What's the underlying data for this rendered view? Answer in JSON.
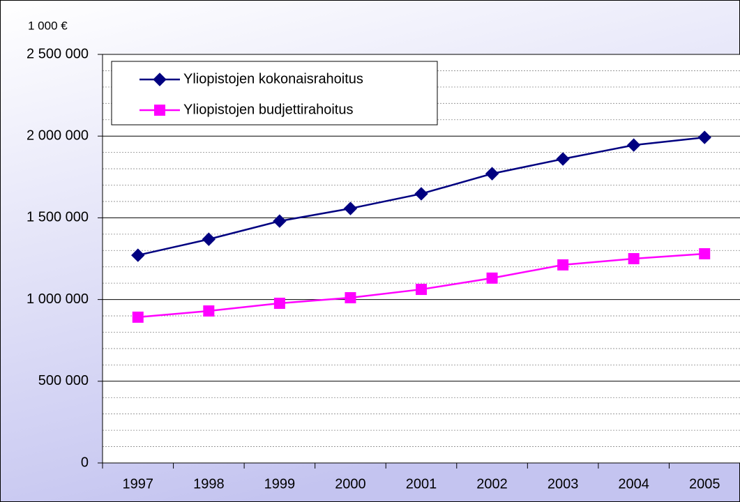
{
  "chart_data": {
    "type": "line",
    "unit_label": "1 000 €",
    "categories": [
      "1997",
      "1998",
      "1999",
      "2000",
      "2001",
      "2002",
      "2003",
      "2004",
      "2005"
    ],
    "series": [
      {
        "name": "Yliopistojen kokonaisrahoitus",
        "color": "#000080",
        "marker": "diamond",
        "values": [
          1271000,
          1369000,
          1480000,
          1557000,
          1647000,
          1770000,
          1860000,
          1945000,
          1992000
        ]
      },
      {
        "name": "Yliopistojen budjettirahoitus",
        "color": "#ff00ff",
        "marker": "square",
        "values": [
          892000,
          930000,
          977000,
          1011000,
          1062000,
          1131000,
          1212000,
          1250000,
          1280000
        ]
      }
    ],
    "ylim": [
      0,
      2500000
    ],
    "yticks": [
      0,
      {
        "value": 500000,
        "label": "500 000"
      },
      {
        "value": 1000000,
        "label": "1 000 000"
      },
      {
        "value": 1500000,
        "label": "1 500 000"
      },
      {
        "value": 2000000,
        "label": "2 000 000"
      },
      {
        "value": 2500000,
        "label": "2 500 000"
      }
    ],
    "yminorticks": [
      100000,
      200000,
      300000,
      400000,
      600000,
      700000,
      800000,
      900000,
      1100000,
      1200000,
      1300000,
      1400000,
      1600000,
      1700000,
      1800000,
      1900000,
      2100000,
      2200000,
      2300000,
      2400000
    ],
    "grid": true,
    "legend": "top-left"
  }
}
